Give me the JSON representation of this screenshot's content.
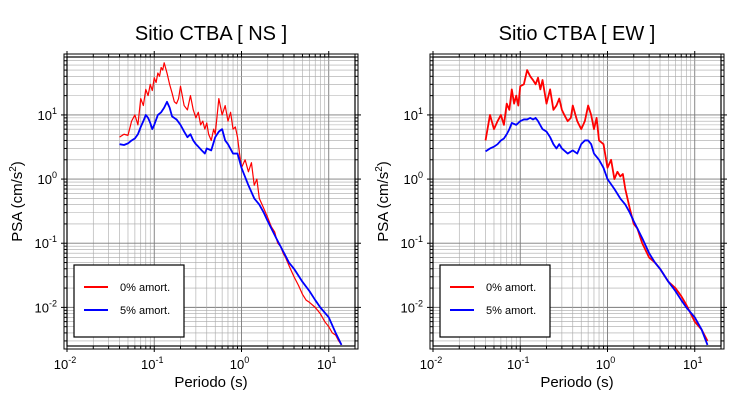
{
  "chart_data": [
    {
      "type": "line",
      "title": "Sitio CTBA [ NS ]",
      "xlabel": "Periodo (s)",
      "ylabel_main": "PSA (cm/s",
      "ylabel_sup": "2",
      "ylabel_close": ")",
      "xscale": "log",
      "yscale": "log",
      "xlim": [
        0.01,
        20
      ],
      "ylim": [
        0.0025,
        80
      ],
      "grid": true,
      "legend_position": "bottom-left",
      "x_ticks": [
        {
          "base": "10",
          "exp": "-2"
        },
        {
          "base": "10",
          "exp": "-1"
        },
        {
          "base": "10",
          "exp": "0"
        },
        {
          "base": "10",
          "exp": "1"
        }
      ],
      "y_ticks": [
        {
          "base": "10",
          "exp": "1"
        },
        {
          "base": "10",
          "exp": "0"
        },
        {
          "base": "10",
          "exp": "-1"
        },
        {
          "base": "10",
          "exp": "-2"
        }
      ],
      "series": [
        {
          "name": "0% amort.",
          "color": "#ff0000",
          "x": [
            0.04,
            0.045,
            0.05,
            0.055,
            0.06,
            0.065,
            0.07,
            0.075,
            0.08,
            0.085,
            0.09,
            0.095,
            0.1,
            0.105,
            0.11,
            0.115,
            0.12,
            0.125,
            0.13,
            0.14,
            0.15,
            0.16,
            0.17,
            0.18,
            0.19,
            0.2,
            0.22,
            0.24,
            0.26,
            0.28,
            0.3,
            0.32,
            0.34,
            0.36,
            0.38,
            0.4,
            0.42,
            0.45,
            0.48,
            0.5,
            0.55,
            0.6,
            0.65,
            0.7,
            0.75,
            0.8,
            0.85,
            0.9,
            0.95,
            1.0,
            1.1,
            1.2,
            1.3,
            1.4,
            1.5,
            1.6,
            1.8,
            2.0,
            2.2,
            2.4,
            2.6,
            2.8,
            3.0,
            3.2,
            3.5,
            3.8,
            4.0,
            4.5,
            5.0,
            5.5,
            6.0,
            7.0,
            8.0,
            9.0,
            10.0,
            11.0,
            12.0,
            13.0,
            14.0
          ],
          "y": [
            4.5,
            5.0,
            4.8,
            8.0,
            10.0,
            7.0,
            18.0,
            14.0,
            25.0,
            20.0,
            30.0,
            24.0,
            38.0,
            32.0,
            45.0,
            40.0,
            55.0,
            50.0,
            65.0,
            45.0,
            30.0,
            22.0,
            16.0,
            15.0,
            18.0,
            28.0,
            14.0,
            12.0,
            20.0,
            12.0,
            9.0,
            11.0,
            7.0,
            8.0,
            6.0,
            7.5,
            5.0,
            4.0,
            6.0,
            5.0,
            18.0,
            10.0,
            14.0,
            8.0,
            11.0,
            6.0,
            6.5,
            4.5,
            2.5,
            1.5,
            2.0,
            1.3,
            1.8,
            0.8,
            1.0,
            0.5,
            0.35,
            0.25,
            0.18,
            0.15,
            0.1,
            0.09,
            0.07,
            0.06,
            0.045,
            0.035,
            0.03,
            0.022,
            0.016,
            0.013,
            0.012,
            0.01,
            0.008,
            0.006,
            0.005,
            0.004,
            0.0037,
            0.003,
            0.0026
          ]
        },
        {
          "name": "5% amort.",
          "color": "#0000ff",
          "x": [
            0.04,
            0.045,
            0.05,
            0.055,
            0.06,
            0.065,
            0.07,
            0.075,
            0.08,
            0.085,
            0.09,
            0.095,
            0.1,
            0.11,
            0.12,
            0.13,
            0.14,
            0.15,
            0.16,
            0.18,
            0.2,
            0.22,
            0.24,
            0.26,
            0.28,
            0.3,
            0.32,
            0.35,
            0.38,
            0.4,
            0.45,
            0.5,
            0.55,
            0.6,
            0.65,
            0.7,
            0.8,
            0.9,
            1.0,
            1.2,
            1.4,
            1.6,
            1.8,
            2.0,
            2.5,
            3.0,
            3.5,
            4.0,
            5.0,
            6.0,
            7.0,
            8.0,
            10.0,
            12.0,
            14.0
          ],
          "y": [
            3.5,
            3.4,
            3.6,
            4.0,
            4.3,
            5.0,
            6.5,
            8.0,
            10.0,
            9.0,
            7.5,
            6.0,
            7.0,
            10.0,
            11.0,
            13.0,
            16.0,
            13.0,
            9.5,
            8.5,
            7.0,
            5.5,
            4.5,
            5.0,
            4.0,
            3.5,
            3.2,
            2.8,
            2.5,
            3.0,
            2.8,
            4.5,
            5.5,
            6.0,
            4.0,
            3.5,
            2.5,
            2.5,
            1.5,
            0.8,
            0.5,
            0.4,
            0.3,
            0.22,
            0.12,
            0.075,
            0.05,
            0.04,
            0.025,
            0.018,
            0.013,
            0.01,
            0.007,
            0.004,
            0.0026
          ]
        }
      ]
    },
    {
      "type": "line",
      "title": "Sitio CTBA [ EW ]",
      "xlabel": "Periodo (s)",
      "ylabel_main": "PSA (cm/s",
      "ylabel_sup": "2",
      "ylabel_close": ")",
      "xscale": "log",
      "yscale": "log",
      "xlim": [
        0.01,
        20
      ],
      "ylim": [
        0.0025,
        80
      ],
      "grid": true,
      "legend_position": "bottom-left",
      "x_ticks": [
        {
          "base": "10",
          "exp": "-2"
        },
        {
          "base": "10",
          "exp": "-1"
        },
        {
          "base": "10",
          "exp": "0"
        },
        {
          "base": "10",
          "exp": "1"
        }
      ],
      "y_ticks": [
        {
          "base": "10",
          "exp": "1"
        },
        {
          "base": "10",
          "exp": "0"
        },
        {
          "base": "10",
          "exp": "-1"
        },
        {
          "base": "10",
          "exp": "-2"
        }
      ],
      "series": [
        {
          "name": "0% amort.",
          "color": "#ff0000",
          "x": [
            0.04,
            0.045,
            0.05,
            0.055,
            0.06,
            0.065,
            0.07,
            0.075,
            0.08,
            0.085,
            0.09,
            0.095,
            0.1,
            0.11,
            0.12,
            0.13,
            0.14,
            0.15,
            0.16,
            0.17,
            0.18,
            0.2,
            0.22,
            0.24,
            0.26,
            0.28,
            0.3,
            0.32,
            0.35,
            0.38,
            0.4,
            0.45,
            0.5,
            0.55,
            0.6,
            0.65,
            0.7,
            0.75,
            0.8,
            0.9,
            1.0,
            1.1,
            1.2,
            1.3,
            1.4,
            1.5,
            1.6,
            1.8,
            2.0,
            2.2,
            2.5,
            3.0,
            3.5,
            4.0,
            5.0,
            6.0,
            7.0,
            8.0,
            9.0,
            10.0,
            12.0,
            14.0
          ],
          "y": [
            4.0,
            10.0,
            6.0,
            8.0,
            10.0,
            7.0,
            15.0,
            12.0,
            25.0,
            15.0,
            20.0,
            14.0,
            28.0,
            30.0,
            50.0,
            40.0,
            35.0,
            30.0,
            38.0,
            25.0,
            35.0,
            15.0,
            25.0,
            12.0,
            14.0,
            18.0,
            12.0,
            10.0,
            8.0,
            9.0,
            14.0,
            8.0,
            6.0,
            8.0,
            14.0,
            10.0,
            6.0,
            9.0,
            4.0,
            3.5,
            1.5,
            2.0,
            1.0,
            1.3,
            1.1,
            1.2,
            0.7,
            0.35,
            0.2,
            0.17,
            0.1,
            0.06,
            0.05,
            0.04,
            0.025,
            0.02,
            0.015,
            0.011,
            0.008,
            0.006,
            0.0045,
            0.003
          ]
        },
        {
          "name": "5% amort.",
          "color": "#0000ff",
          "x": [
            0.04,
            0.045,
            0.05,
            0.055,
            0.06,
            0.065,
            0.07,
            0.075,
            0.08,
            0.09,
            0.1,
            0.11,
            0.12,
            0.13,
            0.14,
            0.15,
            0.16,
            0.18,
            0.2,
            0.22,
            0.24,
            0.26,
            0.28,
            0.3,
            0.35,
            0.4,
            0.45,
            0.5,
            0.55,
            0.6,
            0.65,
            0.7,
            0.8,
            0.9,
            1.0,
            1.2,
            1.4,
            1.6,
            1.8,
            2.0,
            2.5,
            3.0,
            3.5,
            4.0,
            5.0,
            6.0,
            7.0,
            8.0,
            10.0,
            12.0,
            14.0
          ],
          "y": [
            2.7,
            3.0,
            3.2,
            3.5,
            4.0,
            4.3,
            5.0,
            6.0,
            7.5,
            7.0,
            8.0,
            8.5,
            8.5,
            9.0,
            8.5,
            9.0,
            8.0,
            6.0,
            5.5,
            4.5,
            3.5,
            3.0,
            3.5,
            3.0,
            2.5,
            2.8,
            2.5,
            3.5,
            4.0,
            4.0,
            3.5,
            2.5,
            2.0,
            1.5,
            1.0,
            0.7,
            0.5,
            0.4,
            0.3,
            0.22,
            0.12,
            0.07,
            0.05,
            0.04,
            0.025,
            0.018,
            0.013,
            0.01,
            0.007,
            0.0045,
            0.0026
          ]
        }
      ]
    }
  ]
}
